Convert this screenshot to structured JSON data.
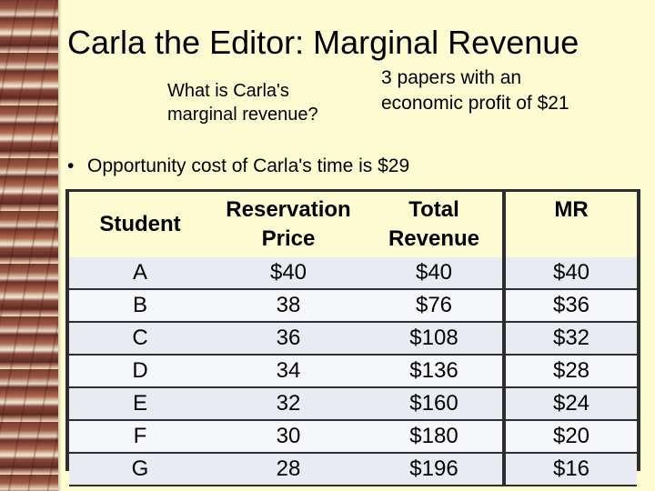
{
  "slide": {
    "title": "Carla the Editor: Marginal Revenue",
    "question": "What is Carla's marginal revenue?",
    "answer": "3 papers with an economic profit of $21",
    "bullet_symbol": "•",
    "bullet": "Opportunity cost of Carla's time is $29"
  },
  "table": {
    "headers": {
      "student": "Student",
      "reservation_1": "Reservation",
      "reservation_2": "Price",
      "total_1": "Total",
      "total_2": "Revenue",
      "mr": "MR"
    },
    "rows": [
      {
        "student": "A",
        "price": "$40",
        "revenue": "$40",
        "mr": "$40"
      },
      {
        "student": "B",
        "price": "38",
        "revenue": "$76",
        "mr": "$36"
      },
      {
        "student": "C",
        "price": "36",
        "revenue": "$108",
        "mr": "$32"
      },
      {
        "student": "D",
        "price": "34",
        "revenue": "$136",
        "mr": "$28"
      },
      {
        "student": "E",
        "price": "32",
        "revenue": "$160",
        "mr": "$24"
      },
      {
        "student": "F",
        "price": "30",
        "revenue": "$180",
        "mr": "$20"
      },
      {
        "student": "G",
        "price": "28",
        "revenue": "$196",
        "mr": "$16"
      }
    ]
  },
  "colors": {
    "background": "#fdfbd2",
    "table_border": "#2e2e2e",
    "row_shade": "#e9ebf2"
  }
}
